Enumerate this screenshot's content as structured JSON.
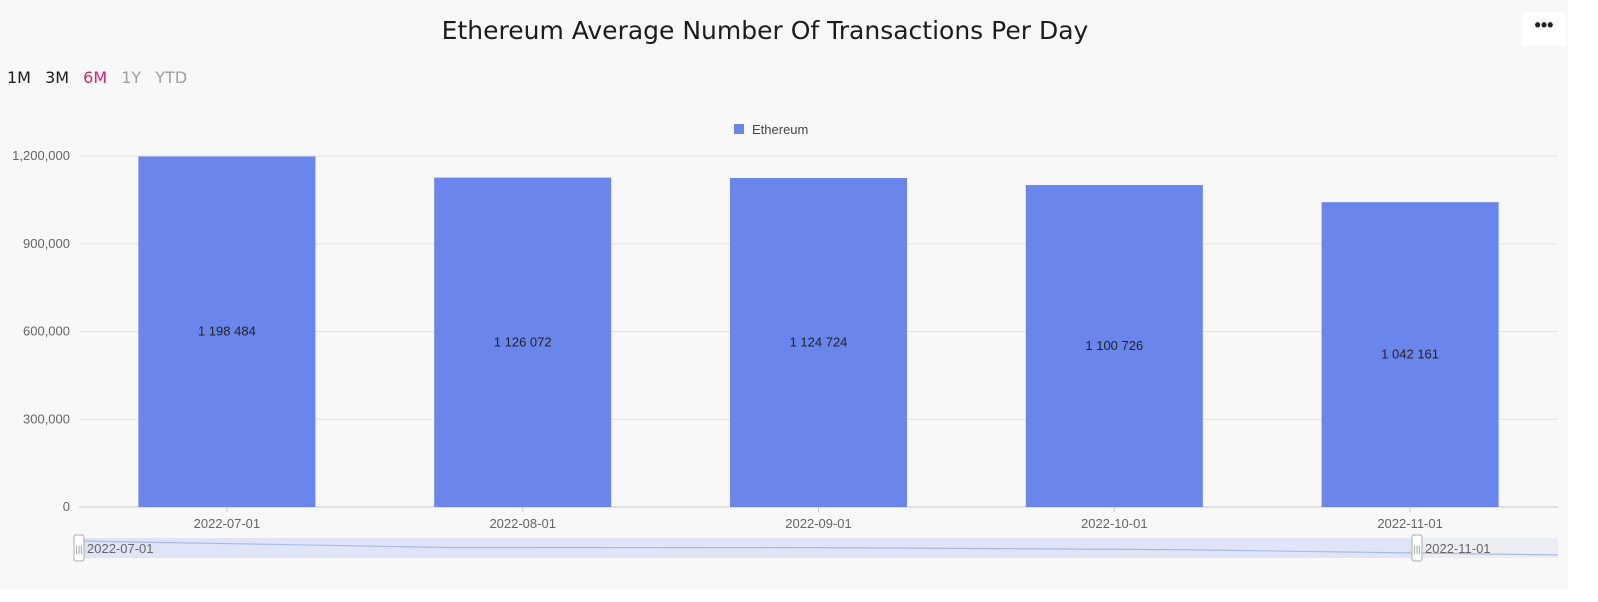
{
  "header": {
    "title": "Ethereum Average Number Of Transactions Per Day",
    "menu_label": "•••"
  },
  "ranges": [
    {
      "label": "1M",
      "state": "dark"
    },
    {
      "label": "3M",
      "state": "dark"
    },
    {
      "label": "6M",
      "state": "active"
    },
    {
      "label": "1Y",
      "state": "muted"
    },
    {
      "label": "YTD",
      "state": "muted"
    }
  ],
  "colors": {
    "bar": "#6a86ec",
    "active_range": "#d6246e",
    "zoom_fill": "#dfe4f6",
    "zoom_line": "#aab8ec"
  },
  "chart_data": {
    "type": "bar",
    "title": "Ethereum Average Number Of Transactions Per Day",
    "legend": {
      "position": "top-center",
      "entries": [
        "Ethereum"
      ]
    },
    "categories": [
      "2022-07-01",
      "2022-08-01",
      "2022-09-01",
      "2022-10-01",
      "2022-11-01"
    ],
    "series": [
      {
        "name": "Ethereum",
        "values": [
          1198484,
          1126072,
          1124724,
          1100726,
          1042161
        ],
        "labels": [
          "1 198 484",
          "1 126 072",
          "1 124 724",
          "1 100 726",
          "1 042 161"
        ]
      }
    ],
    "ylim": [
      0,
      1200000
    ],
    "yticks": [
      0,
      300000,
      600000,
      900000,
      1200000
    ],
    "ytick_labels": [
      "0",
      "300,000",
      "600,000",
      "900,000",
      "1,200,000"
    ],
    "grid": true,
    "xlabel": "",
    "ylabel": ""
  },
  "zoom": {
    "start_label": "2022-07-01",
    "end_label": "2022-11-01",
    "handle_glyph": "|||"
  }
}
